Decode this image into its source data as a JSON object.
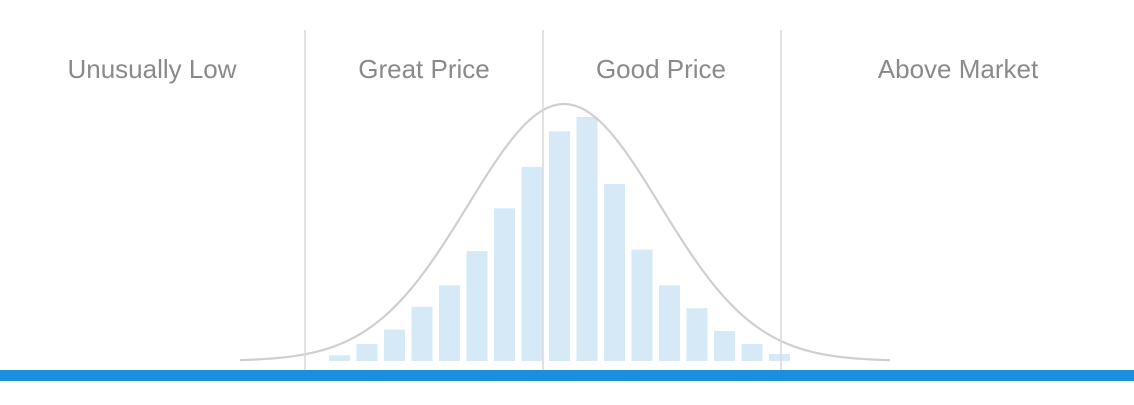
{
  "chart_data": {
    "type": "bar",
    "title": "",
    "xlabel": "",
    "ylabel": "",
    "zones": [
      {
        "label": "Unusually Low"
      },
      {
        "label": "Great Price"
      },
      {
        "label": "Good Price"
      },
      {
        "label": "Above Market"
      }
    ],
    "bars": {
      "values": [
        4,
        12,
        22,
        38,
        53,
        77,
        107,
        136,
        161,
        171,
        124,
        78,
        53,
        37,
        21,
        12,
        5
      ],
      "color": "#d6e9f7"
    },
    "distribution_curve": {
      "type": "normal",
      "color": "#cfcfcf"
    },
    "divider_color": "#d8d8d8",
    "baseline_color": "#1a8fdc",
    "label_color": "#8a8a8a",
    "grid": false,
    "legend": "none"
  }
}
